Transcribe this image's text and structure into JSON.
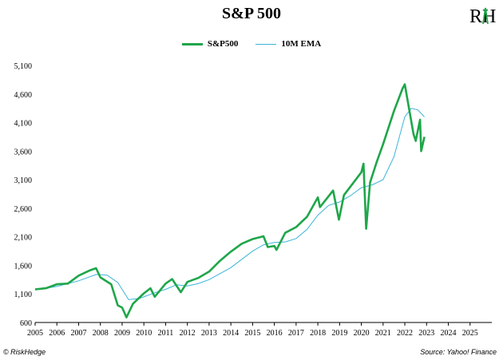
{
  "header": {
    "title": "S&P 500",
    "logo_text": "RH"
  },
  "footer": {
    "credit": "© RiskHedge",
    "source": "Source: Yahoo! Finance"
  },
  "colors": {
    "sp500": "#1fa64a",
    "ema": "#3cb4d8",
    "axis": "#000000"
  },
  "chart_data": {
    "type": "line",
    "title": "S&P 500",
    "xlabel": "",
    "ylabel": "",
    "xlim": [
      2005,
      2026
    ],
    "ylim": [
      600,
      5100
    ],
    "x_ticks": [
      "2005",
      "2006",
      "2007",
      "2008",
      "2009",
      "2010",
      "2011",
      "2012",
      "2013",
      "2014",
      "2015",
      "2016",
      "2017",
      "2018",
      "2019",
      "2020",
      "2021",
      "2022",
      "2023",
      "2024",
      "2025"
    ],
    "y_ticks": [
      "600",
      "1,100",
      "1,600",
      "2,100",
      "2,600",
      "3,100",
      "3,600",
      "4,100",
      "4,600",
      "5,100"
    ],
    "grid": false,
    "legend": "top-center",
    "series": [
      {
        "name": "S&P500",
        "x": [
          2005.0,
          2005.5,
          2006.0,
          2006.5,
          2007.0,
          2007.5,
          2007.8,
          2008.0,
          2008.5,
          2008.8,
          2009.0,
          2009.2,
          2009.5,
          2010.0,
          2010.3,
          2010.5,
          2011.0,
          2011.3,
          2011.7,
          2012.0,
          2012.5,
          2013.0,
          2013.5,
          2014.0,
          2014.5,
          2015.0,
          2015.5,
          2015.7,
          2016.0,
          2016.1,
          2016.5,
          2017.0,
          2017.5,
          2018.0,
          2018.1,
          2018.7,
          2018.97,
          2019.2,
          2019.5,
          2020.0,
          2020.1,
          2020.22,
          2020.4,
          2020.7,
          2021.0,
          2021.5,
          2021.9,
          2022.0,
          2022.4,
          2022.5,
          2022.7,
          2022.75,
          2022.9
        ],
        "values": [
          1180,
          1200,
          1270,
          1280,
          1420,
          1510,
          1550,
          1390,
          1270,
          900,
          860,
          690,
          930,
          1110,
          1200,
          1050,
          1280,
          1360,
          1130,
          1310,
          1380,
          1490,
          1680,
          1840,
          1980,
          2060,
          2110,
          1920,
          1940,
          1870,
          2170,
          2270,
          2450,
          2790,
          2620,
          2910,
          2400,
          2830,
          2980,
          3230,
          3380,
          2240,
          3050,
          3400,
          3720,
          4300,
          4700,
          4770,
          3900,
          3780,
          4150,
          3600,
          3850
        ]
      },
      {
        "name": "10M EMA",
        "x": [
          2005.0,
          2006.0,
          2007.0,
          2007.8,
          2008.3,
          2008.8,
          2009.3,
          2009.8,
          2010.5,
          2011.0,
          2011.5,
          2012.0,
          2012.5,
          2013.0,
          2014.0,
          2015.0,
          2015.5,
          2016.0,
          2016.5,
          2017.0,
          2017.5,
          2018.0,
          2018.5,
          2019.0,
          2019.5,
          2020.0,
          2020.5,
          2021.0,
          2021.5,
          2022.0,
          2022.3,
          2022.6,
          2022.9
        ],
        "values": [
          1170,
          1230,
          1330,
          1440,
          1430,
          1300,
          1000,
          1020,
          1120,
          1180,
          1260,
          1240,
          1280,
          1350,
          1560,
          1850,
          1960,
          2000,
          2010,
          2070,
          2230,
          2480,
          2650,
          2710,
          2820,
          2960,
          3010,
          3100,
          3500,
          4200,
          4350,
          4320,
          4200
        ]
      }
    ]
  }
}
